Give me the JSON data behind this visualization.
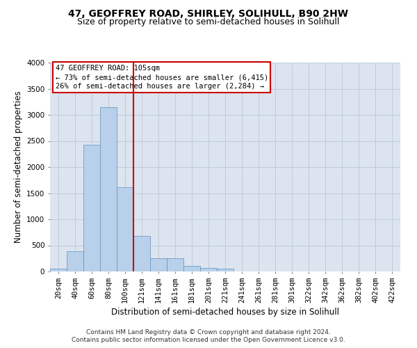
{
  "title": "47, GEOFFREY ROAD, SHIRLEY, SOLIHULL, B90 2HW",
  "subtitle": "Size of property relative to semi-detached houses in Solihull",
  "xlabel": "Distribution of semi-detached houses by size in Solihull",
  "ylabel": "Number of semi-detached properties",
  "footer_line1": "Contains HM Land Registry data © Crown copyright and database right 2024.",
  "footer_line2": "Contains public sector information licensed under the Open Government Licence v3.0.",
  "annotation_title": "47 GEOFFREY ROAD: 105sqm",
  "annotation_line1": "← 73% of semi-detached houses are smaller (6,415)",
  "annotation_line2": "26% of semi-detached houses are larger (2,284) →",
  "bar_categories": [
    "20sqm",
    "40sqm",
    "60sqm",
    "80sqm",
    "100sqm",
    "121sqm",
    "141sqm",
    "161sqm",
    "181sqm",
    "201sqm",
    "221sqm",
    "241sqm",
    "261sqm",
    "281sqm",
    "301sqm",
    "322sqm",
    "342sqm",
    "362sqm",
    "382sqm",
    "402sqm",
    "422sqm"
  ],
  "bar_values": [
    50,
    390,
    2430,
    3150,
    1620,
    680,
    260,
    260,
    110,
    65,
    55,
    0,
    0,
    0,
    0,
    0,
    0,
    0,
    0,
    0,
    0
  ],
  "bar_color": "#b8d0ea",
  "bar_edge_color": "#6090c0",
  "vline_color": "#cc0000",
  "vline_x": 4.5,
  "ylim": [
    0,
    4000
  ],
  "yticks": [
    0,
    500,
    1000,
    1500,
    2000,
    2500,
    3000,
    3500,
    4000
  ],
  "grid_color": "#c0ccd8",
  "bg_color": "#dce4f0",
  "annotation_box_color": "#ffffff",
  "annotation_box_edge": "#cc0000",
  "title_fontsize": 10,
  "subtitle_fontsize": 9,
  "axis_label_fontsize": 8.5,
  "tick_fontsize": 7.5,
  "annotation_fontsize": 7.5,
  "footer_fontsize": 6.5
}
